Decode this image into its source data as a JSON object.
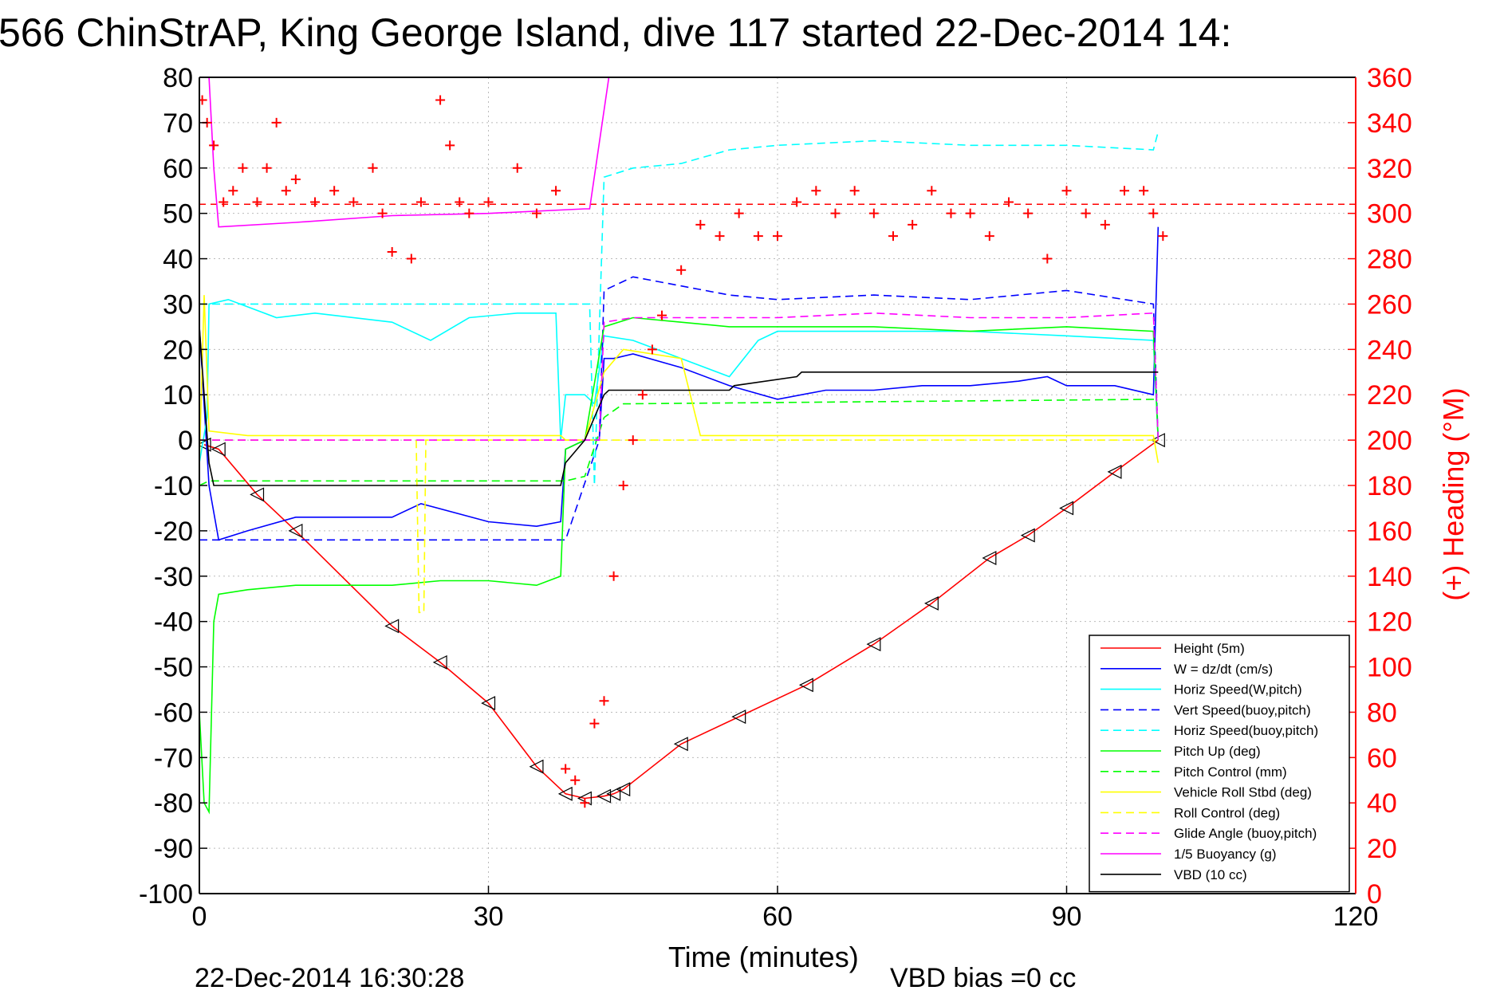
{
  "chart_data": {
    "type": "line",
    "title": "566 ChinStrAP, King George Island, dive 117 started 22-Dec-2014 14:",
    "xlabel": "Time (minutes)",
    "ylabel": "",
    "y2label": "(+) Heading (°M)",
    "xlim": [
      0,
      120
    ],
    "ylim": [
      -100,
      80
    ],
    "y2lim": [
      0,
      360
    ],
    "xticks": [
      "0",
      "30",
      "60",
      "90",
      "120"
    ],
    "yticks": [
      "80",
      "70",
      "60",
      "50",
      "40",
      "30",
      "20",
      "10",
      "0",
      "-10",
      "-20",
      "-30",
      "-40",
      "-50",
      "-60",
      "-70",
      "-80",
      "-90",
      "-100"
    ],
    "y2ticks": [
      "360",
      "340",
      "320",
      "300",
      "280",
      "260",
      "240",
      "220",
      "200",
      "180",
      "160",
      "140",
      "120",
      "100",
      "80",
      "60",
      "40",
      "20",
      "0"
    ],
    "grid": true,
    "legend_position": "bottom-right",
    "footer": {
      "timestamp": "22-Dec-2014 16:30:28",
      "vbd_bias": "VBD bias =0 cc"
    },
    "series": [
      {
        "name": "Height (5m)",
        "color": "#ff0000",
        "style": "solid",
        "markers": "triangle-left",
        "x": [
          0.5,
          2,
          6,
          10,
          20,
          25,
          30,
          35,
          38,
          40,
          42,
          43,
          44,
          50,
          56,
          63,
          70,
          76,
          82,
          86,
          90,
          95,
          99.5
        ],
        "y": [
          -1,
          -2,
          -12,
          -20,
          -41,
          -49,
          -58,
          -72,
          -78,
          -79,
          -78.5,
          -78,
          -77,
          -67,
          -61,
          -54,
          -45,
          -36,
          -26,
          -21,
          -15,
          -7,
          0
        ]
      },
      {
        "name": "W = dz/dt (cm/s)",
        "color": "#0000ff",
        "style": "solid",
        "x": [
          0,
          1,
          2,
          5,
          10,
          15,
          20,
          23,
          30,
          35,
          37.5,
          38,
          40,
          41.5,
          42,
          43,
          45,
          50,
          55,
          60,
          65,
          70,
          75,
          80,
          85,
          88,
          90,
          95,
          99,
          99.5
        ],
        "y": [
          25,
          -10,
          -22,
          -20,
          -17,
          -17,
          -17,
          -14,
          -18,
          -19,
          -18,
          -2,
          0,
          0,
          18,
          18,
          19,
          16,
          12,
          9,
          11,
          11,
          12,
          12,
          13,
          14,
          12,
          12,
          10,
          47
        ]
      },
      {
        "name": "Horiz Speed(W,pitch)",
        "color": "#00ffff",
        "style": "solid",
        "x": [
          0,
          0.8,
          1,
          3,
          8,
          12,
          20,
          24,
          28,
          33,
          37,
          37.5,
          38,
          40,
          41,
          42,
          45,
          50,
          55,
          58,
          60,
          70,
          80,
          90,
          99,
          99.5
        ],
        "y": [
          -5,
          5,
          30,
          31,
          27,
          28,
          26,
          22,
          27,
          28,
          28,
          0,
          10,
          10,
          8,
          23,
          22,
          18,
          14,
          22,
          24,
          24,
          24,
          23,
          22,
          0
        ]
      },
      {
        "name": "Vert Speed(buoy,pitch)",
        "color": "#0000ff",
        "style": "dashed",
        "x": [
          0,
          1,
          1.5,
          37.5,
          38,
          41.5,
          42,
          45,
          50,
          55,
          60,
          70,
          80,
          90,
          99,
          99.5
        ],
        "y": [
          -22,
          -22,
          -22,
          -22,
          -22,
          0,
          33,
          36,
          34,
          32,
          31,
          32,
          31,
          33,
          30,
          0
        ]
      },
      {
        "name": "Horiz Speed(buoy,pitch)",
        "color": "#00ffff",
        "style": "dashed",
        "x": [
          0,
          1,
          1.5,
          37.5,
          38,
          40.5,
          41,
          42,
          45,
          50,
          55,
          60,
          70,
          80,
          90,
          99,
          99.5
        ],
        "y": [
          30,
          30,
          30,
          30,
          30,
          30,
          -10,
          58,
          60,
          61,
          64,
          65,
          66,
          65,
          65,
          64,
          68
        ]
      },
      {
        "name": "Pitch Up (deg)",
        "color": "#00ff00",
        "style": "solid",
        "x": [
          0,
          0.5,
          1,
          1.5,
          2,
          5,
          10,
          15,
          20,
          25,
          30,
          35,
          37.5,
          38,
          40,
          42,
          45,
          50,
          55,
          60,
          70,
          80,
          90,
          99,
          99.5
        ],
        "y": [
          -60,
          -80,
          -82,
          -40,
          -34,
          -33,
          -32,
          -32,
          -32,
          -31,
          -31,
          -32,
          -30,
          -2,
          0,
          25,
          27,
          26,
          25,
          25,
          25,
          24,
          25,
          24,
          0
        ]
      },
      {
        "name": "Pitch Control (mm)",
        "color": "#00ff00",
        "style": "dashed",
        "x": [
          0,
          1,
          1.5,
          37.5,
          38,
          40,
          42,
          44,
          99.5
        ],
        "y": [
          -10,
          -9,
          -9,
          -9,
          -9,
          -8,
          5,
          8,
          9
        ]
      },
      {
        "name": "Vehicle Roll Stbd (deg)",
        "color": "#ffff00",
        "style": "solid",
        "x": [
          0,
          0.5,
          1,
          5,
          10,
          15,
          20,
          25,
          30,
          35,
          37.5,
          38,
          40,
          42,
          44,
          50,
          52,
          60,
          70,
          80,
          90,
          99,
          99.5
        ],
        "y": [
          -5,
          32,
          2,
          1,
          1,
          1,
          1,
          1,
          1,
          1,
          1,
          0,
          0,
          15,
          20,
          18,
          1,
          1,
          1,
          1,
          1,
          1,
          -5
        ]
      },
      {
        "name": "Roll Control (deg)",
        "color": "#ffff00",
        "style": "dashed",
        "x": [
          0,
          2,
          22.5,
          22.8,
          23,
          23.3,
          23.5,
          37.5,
          99.5
        ],
        "y": [
          0,
          0,
          0,
          -38,
          -38,
          -38,
          0,
          0,
          0
        ]
      },
      {
        "name": "Glide Angle (buoy,pitch)",
        "color": "#ff00ff",
        "style": "dashed",
        "x": [
          0,
          1,
          1.5,
          41.5,
          42,
          45,
          50,
          60,
          70,
          80,
          90,
          99,
          99.5
        ],
        "y": [
          0,
          0,
          0,
          0,
          26,
          27,
          27,
          27,
          28,
          27,
          27,
          28,
          0
        ]
      },
      {
        "name": "1/5 Buoyancy (g)",
        "color": "#ff00ff",
        "style": "solid",
        "x": [
          1,
          1.5,
          2,
          10,
          20,
          30,
          40,
          40.5,
          42.5
        ],
        "y": [
          80,
          60,
          47,
          48,
          49.5,
          50,
          51,
          51,
          80
        ]
      },
      {
        "name": "VBD (10 cc)",
        "color": "#000000",
        "style": "solid",
        "x": [
          0,
          0.5,
          1,
          1.5,
          2,
          37.5,
          38,
          40,
          42,
          42.5,
          55,
          55.5,
          62,
          62.5,
          99.5
        ],
        "y": [
          25,
          10,
          -5,
          -10,
          -10,
          -10,
          -5,
          0,
          10,
          11,
          11,
          12,
          14,
          15,
          15
        ]
      },
      {
        "name": "Heading",
        "color": "#ff0000",
        "style": "plus-markers",
        "axis": "right",
        "x": [
          0.3,
          0.8,
          1.5,
          2.5,
          3.5,
          4.5,
          6,
          7,
          8,
          9,
          10,
          12,
          14,
          16,
          18,
          19,
          20,
          22,
          23,
          25,
          26,
          27,
          28,
          30,
          33,
          35,
          37,
          38,
          39,
          40,
          41,
          42,
          43,
          44,
          45,
          46,
          47,
          48,
          50,
          52,
          54,
          56,
          58,
          60,
          62,
          64,
          66,
          68,
          70,
          72,
          74,
          76,
          78,
          80,
          82,
          84,
          86,
          88,
          90,
          92,
          94,
          96,
          98,
          99,
          100
        ],
        "y": [
          350,
          340,
          330,
          305,
          310,
          320,
          305,
          320,
          340,
          310,
          315,
          305,
          310,
          305,
          320,
          300,
          283,
          280,
          305,
          350,
          330,
          305,
          300,
          305,
          320,
          300,
          310,
          55,
          50,
          40,
          75,
          85,
          140,
          180,
          200,
          220,
          240,
          255,
          275,
          295,
          290,
          300,
          290,
          290,
          305,
          310,
          300,
          310,
          300,
          290,
          295,
          310,
          300,
          300,
          290,
          305,
          300,
          280,
          310,
          300,
          295,
          310,
          310,
          300,
          290
        ]
      }
    ]
  }
}
